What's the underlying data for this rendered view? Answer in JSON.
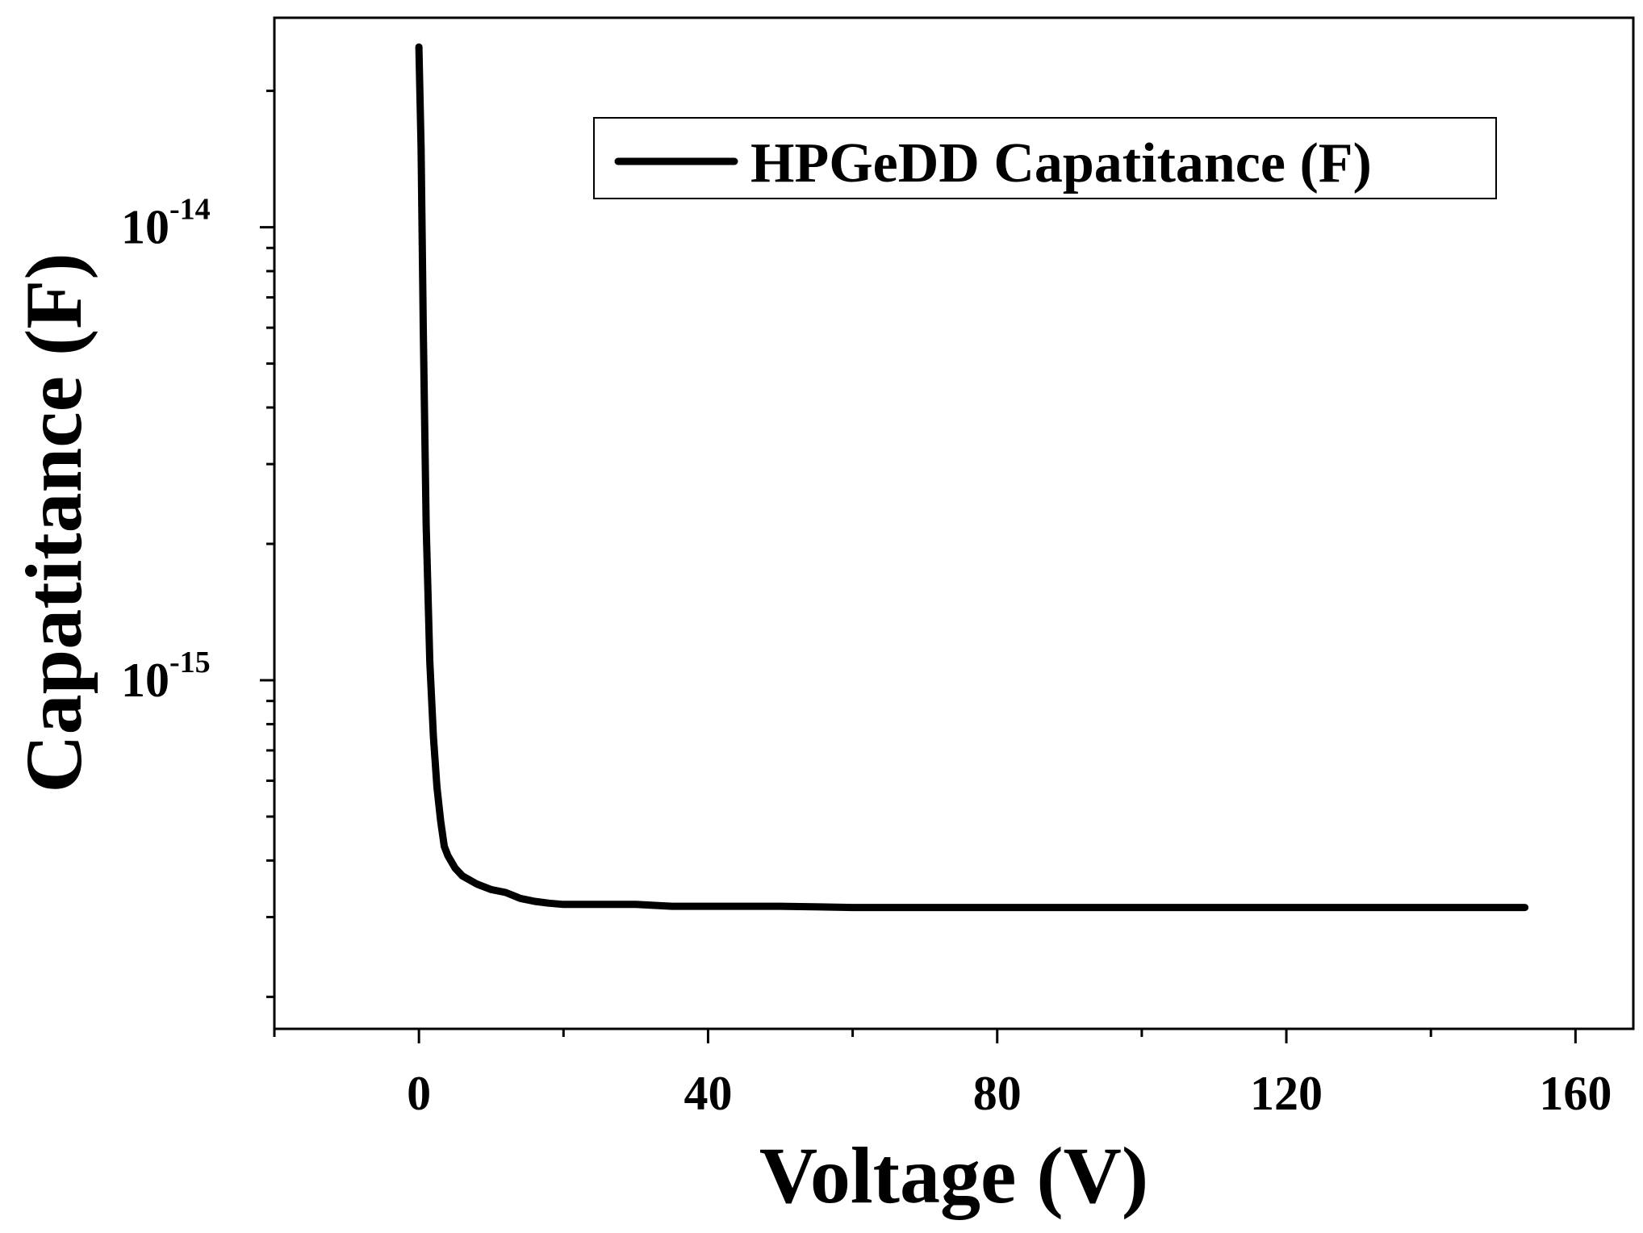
{
  "chart_data": {
    "type": "line",
    "xlabel": "Voltage (V)",
    "ylabel": "Capatitance (F)",
    "xlim": [
      -20,
      168
    ],
    "ylim": [
      1.7e-16,
      2.9e-14
    ],
    "yscale": "log",
    "xticks": [
      0,
      40,
      80,
      120,
      160
    ],
    "xtick_labels": [
      "0",
      "40",
      "80",
      "120",
      "160"
    ],
    "yticks": [
      {
        "base": "10",
        "exp": "-14",
        "value": 1e-14
      },
      {
        "base": "10",
        "exp": "-15",
        "value": 1e-15
      }
    ],
    "grid": false,
    "legend_position": "top-right",
    "series": [
      {
        "name": "HPGeDD Capatitance (F)",
        "color": "#000000",
        "x": [
          0,
          0.3,
          0.6,
          1,
          1.5,
          2,
          2.5,
          3,
          3.5,
          4,
          5,
          6,
          8,
          10,
          12,
          14,
          16,
          18,
          20,
          25,
          30,
          35,
          40,
          50,
          60,
          80,
          100,
          120,
          140,
          153
        ],
        "y": [
          2.5e-14,
          1.5e-14,
          6e-15,
          2.2e-15,
          1.1e-15,
          7.5e-16,
          5.8e-16,
          4.9e-16,
          4.3e-16,
          4.1e-16,
          3.85e-16,
          3.7e-16,
          3.55e-16,
          3.45e-16,
          3.4e-16,
          3.3e-16,
          3.25e-16,
          3.22e-16,
          3.2e-16,
          3.2e-16,
          3.2e-16,
          3.17e-16,
          3.17e-16,
          3.17e-16,
          3.15e-16,
          3.15e-16,
          3.15e-16,
          3.15e-16,
          3.15e-16,
          3.15e-16
        ]
      }
    ]
  }
}
